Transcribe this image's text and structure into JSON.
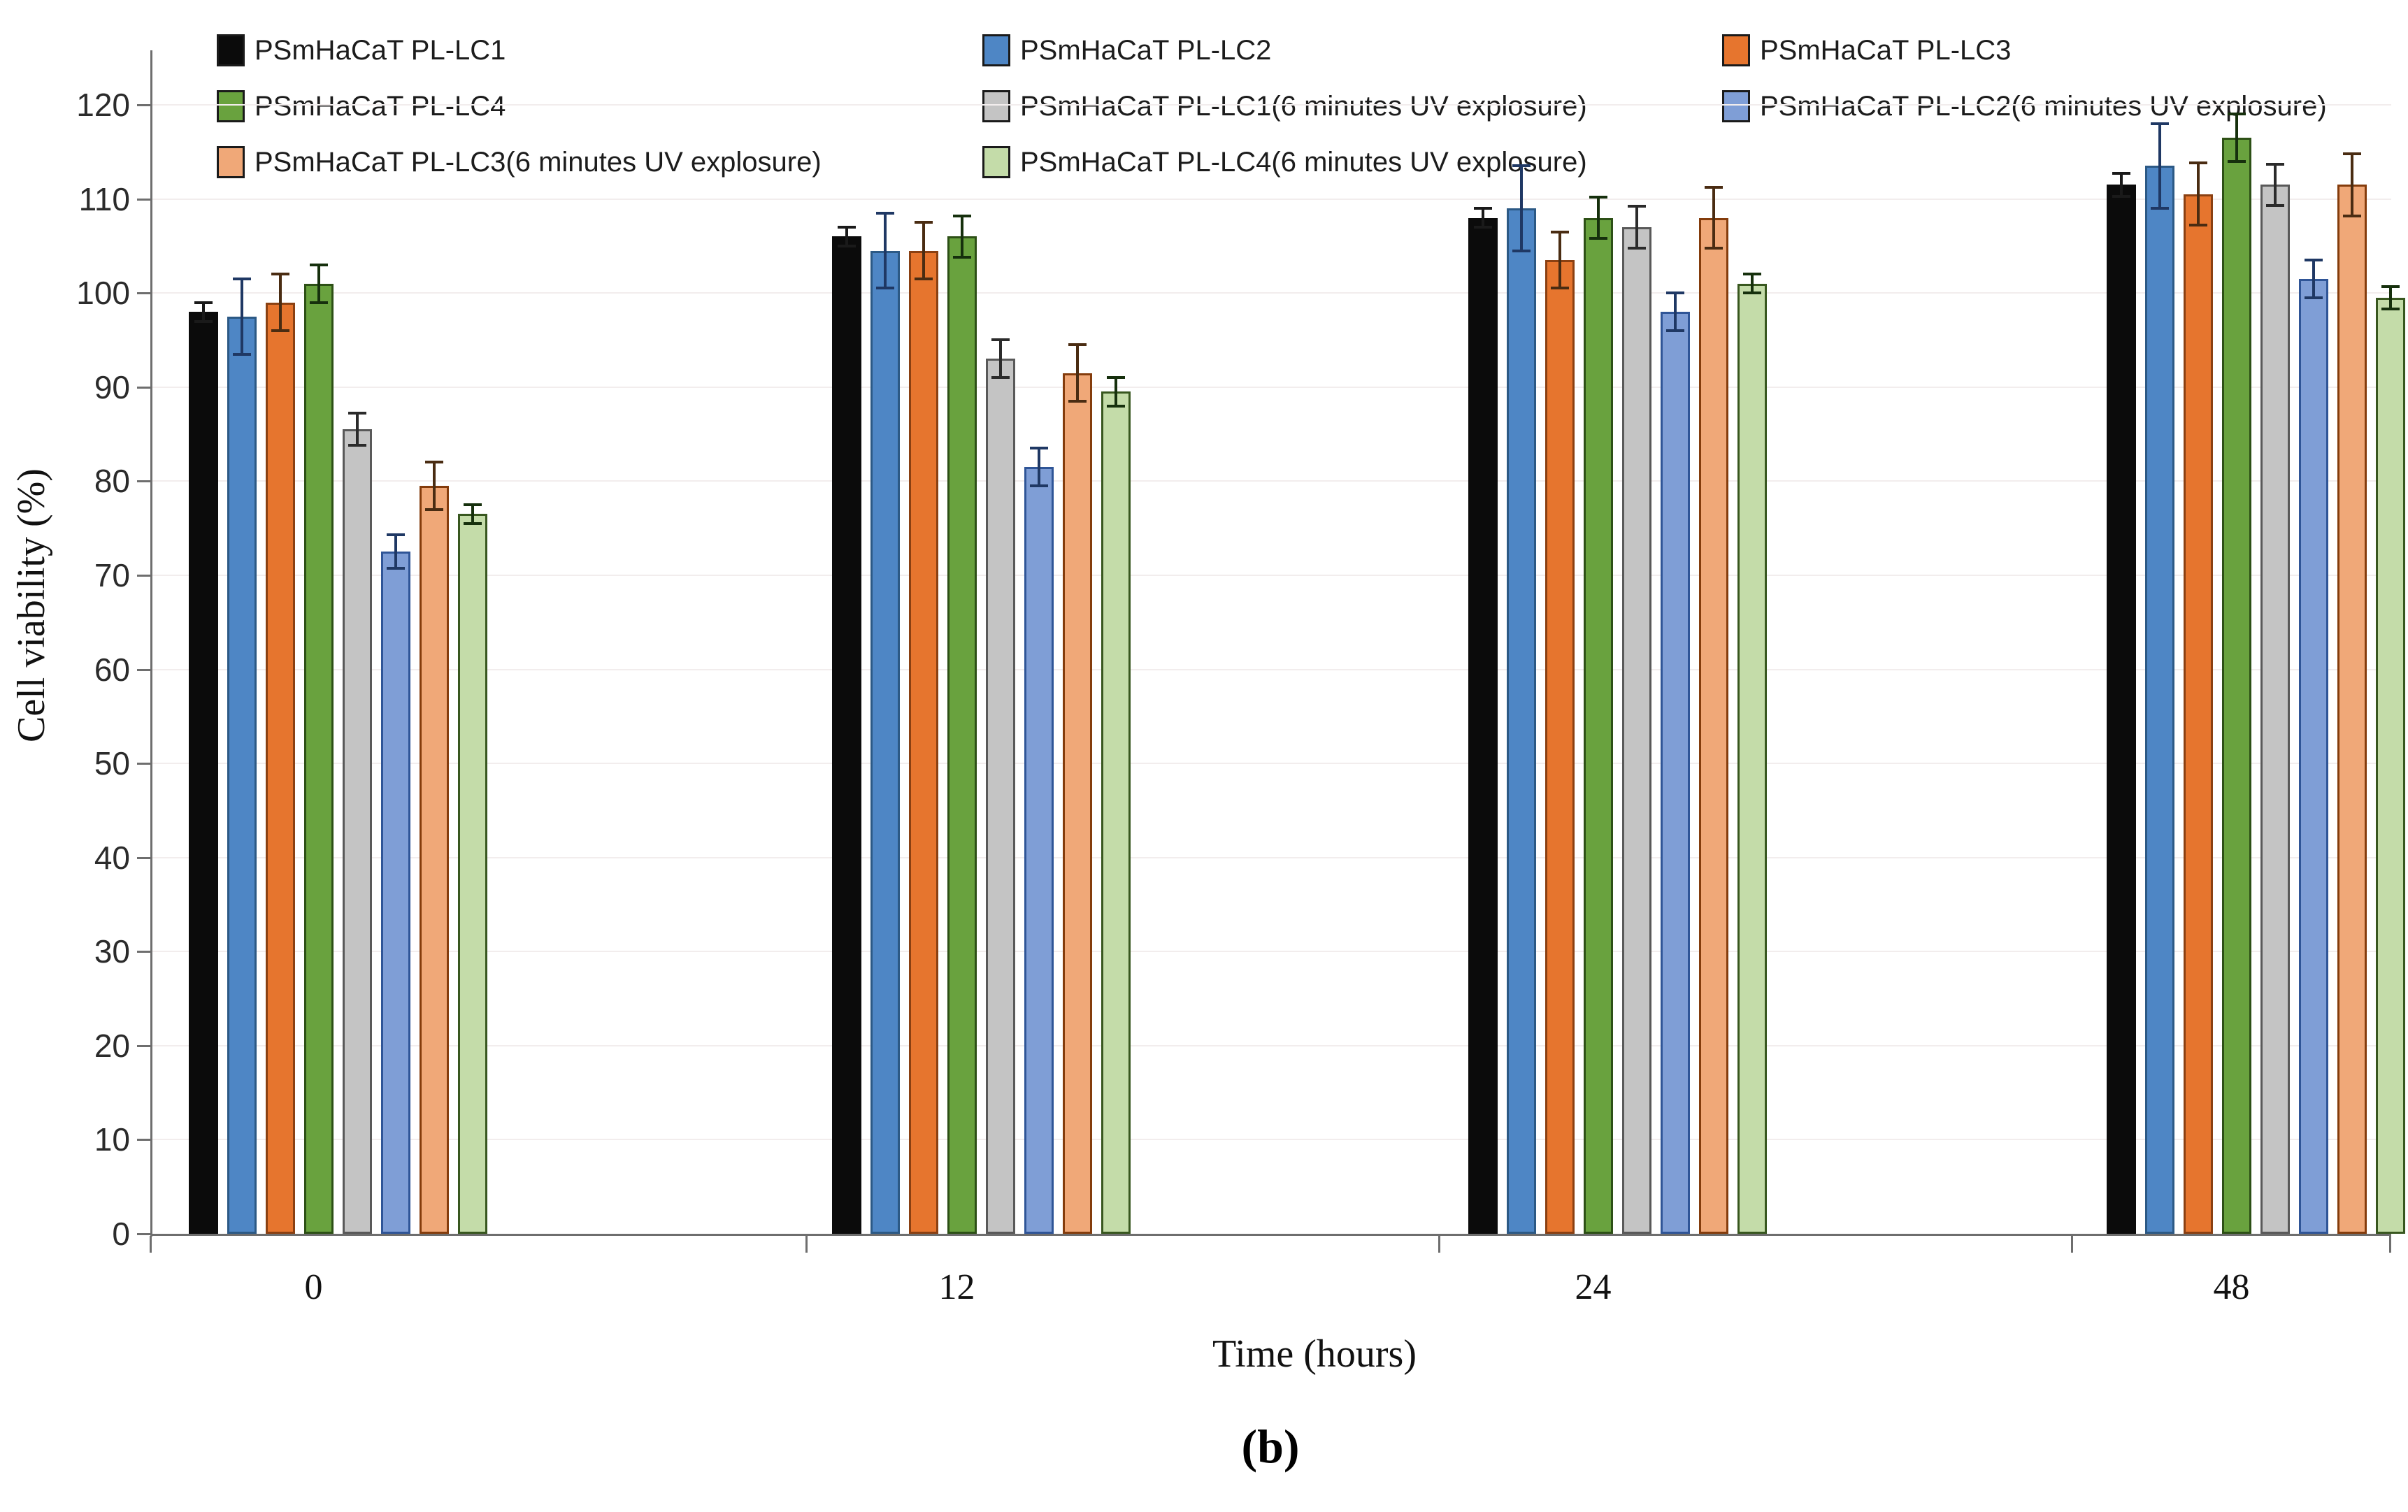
{
  "figure": {
    "caption": "(b)",
    "background": "#ffffff"
  },
  "chart_data": {
    "type": "bar",
    "title": "",
    "xlabel": "Time (hours)",
    "ylabel": "Cell viability (%)",
    "ylim": [
      0,
      120
    ],
    "yticks": [
      0,
      10,
      20,
      30,
      40,
      50,
      60,
      70,
      80,
      90,
      100,
      110,
      120
    ],
    "categories": [
      "0",
      "12",
      "24",
      "48"
    ],
    "grid": "horizontal-light",
    "legend_position": "top",
    "error_bars": true,
    "series": [
      {
        "name": "PSmHaCaT PL-LC1",
        "fill": "#0b0b0b",
        "border": "#0b0b0b",
        "error_color": "#1a1a1a",
        "legend_col": 0,
        "legend_row": 0,
        "values": [
          98,
          106,
          108,
          111.5
        ],
        "errors": [
          1,
          1,
          1,
          1.2
        ]
      },
      {
        "name": "PSmHaCaT PL-LC2",
        "fill": "#4e86c5",
        "border": "#2c5985",
        "error_color": "#1f3864",
        "legend_col": 1,
        "legend_row": 0,
        "values": [
          97.5,
          104.5,
          109,
          113.5
        ],
        "errors": [
          4,
          4,
          4.5,
          4.5
        ]
      },
      {
        "name": "PSmHaCaT PL-LC3",
        "fill": "#e6752e",
        "border": "#8a4012",
        "error_color": "#4a2c12",
        "legend_col": 2,
        "legend_row": 0,
        "values": [
          99,
          104.5,
          103.5,
          110.5
        ],
        "errors": [
          3,
          3,
          3,
          3.3
        ]
      },
      {
        "name": "PSmHaCaT PL-LC4",
        "fill": "#69a23e",
        "border": "#2d5016",
        "error_color": "#16300d",
        "legend_col": 0,
        "legend_row": 1,
        "values": [
          101,
          106,
          108,
          116.5
        ],
        "errors": [
          2,
          2.2,
          2.2,
          2.5
        ]
      },
      {
        "name": "PSmHaCaT PL-LC1(6 minutes UV explosure)",
        "fill": "#c4c4c4",
        "border": "#595959",
        "error_color": "#2b2b2b",
        "legend_col": 1,
        "legend_row": 1,
        "values": [
          85.5,
          93,
          107,
          111.5
        ],
        "errors": [
          1.7,
          2,
          2.2,
          2.2
        ]
      },
      {
        "name": "PSmHaCaT PL-LC2(6 minutes UV explosure)",
        "fill": "#7f9ed6",
        "border": "#2f5597",
        "error_color": "#1f3864",
        "legend_col": 2,
        "legend_row": 1,
        "values": [
          72.5,
          81.5,
          98,
          101.5
        ],
        "errors": [
          1.8,
          2,
          2,
          2
        ]
      },
      {
        "name": "PSmHaCaT PL-LC3(6 minutes UV explosure)",
        "fill": "#f0a878",
        "border": "#843c0c",
        "error_color": "#4a2c12",
        "legend_col": 0,
        "legend_row": 2,
        "values": [
          79.5,
          91.5,
          108,
          111.5
        ],
        "errors": [
          2.5,
          3,
          3.2,
          3.3
        ]
      },
      {
        "name": "PSmHaCaT PL-LC4(6 minutes UV explosure)",
        "fill": "#c4dca9",
        "border": "#38571f",
        "error_color": "#16300d",
        "legend_col": 1,
        "legend_row": 2,
        "values": [
          76.5,
          89.5,
          101,
          99.5
        ],
        "errors": [
          1,
          1.5,
          1,
          1.2
        ]
      }
    ]
  }
}
